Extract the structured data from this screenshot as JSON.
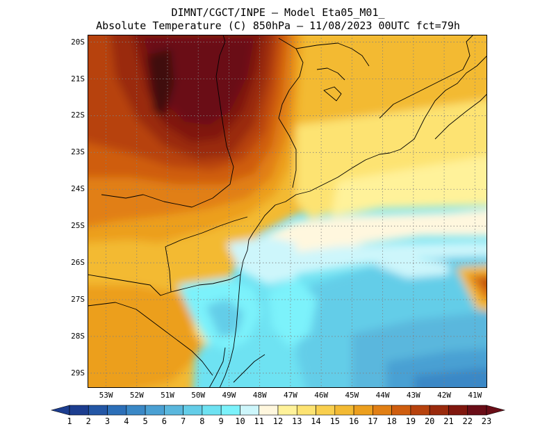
{
  "header": {
    "title_line1": "DIMNT/CGCT/INPE –  Model Eta05_M01_",
    "title_line2": "Absolute Temperature (C) 850hPa –  11/08/2023 00UTC fct=79h"
  },
  "map": {
    "lat_labels": [
      "20S",
      "21S",
      "22S",
      "23S",
      "24S",
      "25S",
      "26S",
      "27S",
      "28S",
      "29S"
    ],
    "lon_labels": [
      "53W",
      "52W",
      "51W",
      "50W",
      "49W",
      "48W",
      "47W",
      "46W",
      "45W",
      "44W",
      "43W",
      "42W",
      "41W"
    ],
    "lat_values": [
      -20,
      -21,
      -22,
      -23,
      -24,
      -25,
      -26,
      -27,
      -28,
      -29
    ],
    "lon_values": [
      -53,
      -52,
      -51,
      -50,
      -49,
      -48,
      -47,
      -46,
      -45,
      -44,
      -43,
      -42,
      -41
    ],
    "extent": {
      "lon_min": -53.6,
      "lon_max": -40.6,
      "lat_min": -29.4,
      "lat_max": -19.8
    },
    "grid": "dotted"
  },
  "colorbar": {
    "labels": [
      "1",
      "2",
      "3",
      "4",
      "5",
      "6",
      "7",
      "8",
      "9",
      "10",
      "11",
      "12",
      "13",
      "14",
      "15",
      "16",
      "17",
      "18",
      "19",
      "20",
      "21",
      "22",
      "23"
    ],
    "colors": [
      "#1c3d8f",
      "#2356a5",
      "#2c6fb8",
      "#3a88c6",
      "#4aa0d3",
      "#5ab7dd",
      "#64cde8",
      "#6ee2f2",
      "#7cf2fb",
      "#cdf6fb",
      "#fff7de",
      "#fff29a",
      "#fde372",
      "#f9cf4e",
      "#f3ba33",
      "#ec9f1e",
      "#e17f14",
      "#cf5d0e",
      "#b7420d",
      "#9a2a0c",
      "#80170e",
      "#6a0d17"
    ],
    "under_color": "#1c3d8f",
    "over_color": "#6a0d17"
  }
}
